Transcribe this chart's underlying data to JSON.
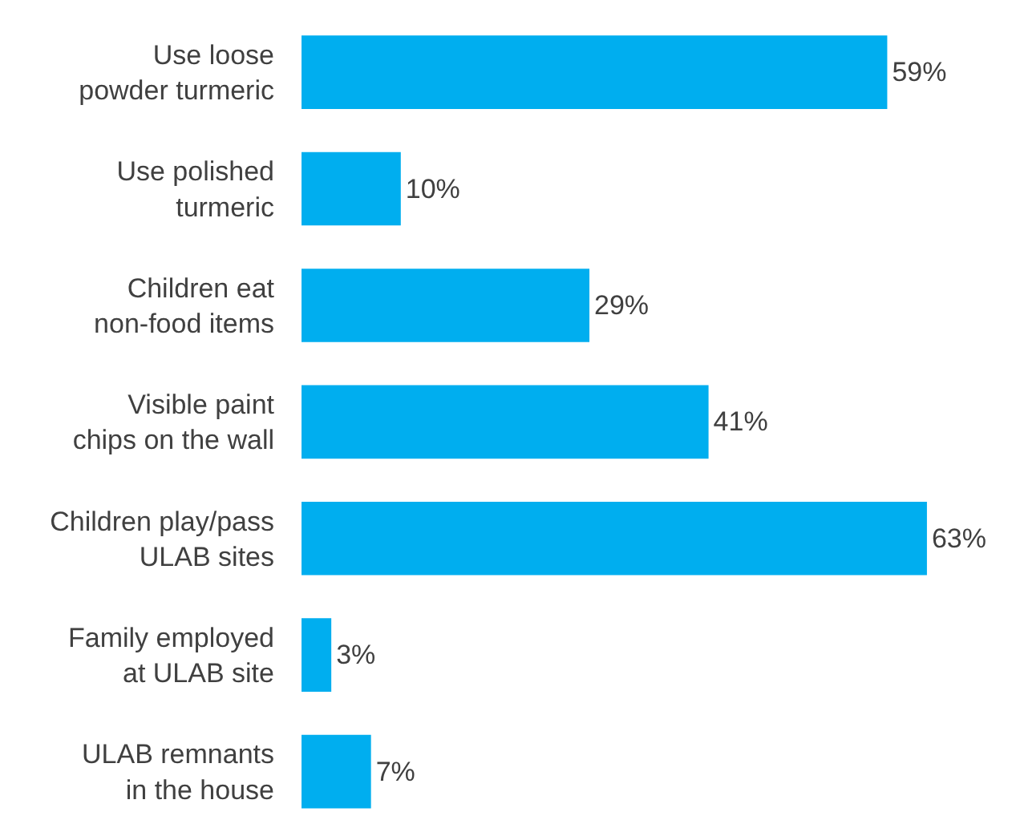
{
  "chart_data": {
    "type": "bar",
    "orientation": "horizontal",
    "categories": [
      "Use loose powder turmeric",
      "Use polished turmeric",
      "Children eat non-food items",
      "Visible paint chips on the wall",
      "Children play/pass ULAB sites",
      "Family employed at ULAB site",
      "ULAB remnants in the house"
    ],
    "series": [
      {
        "color": "#00aeef",
        "values": [
          59,
          10,
          29,
          41,
          63,
          3,
          7
        ],
        "value_labels": [
          "59%",
          "10%",
          "29%",
          "41%",
          "63%",
          "3%",
          "7%"
        ]
      }
    ],
    "legend": false
  }
}
